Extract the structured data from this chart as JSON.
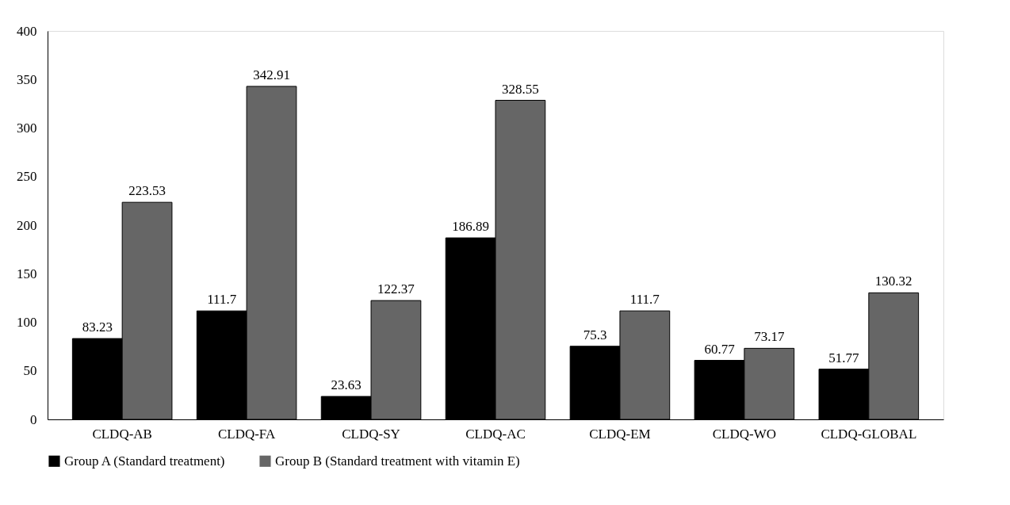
{
  "chart_data": {
    "type": "bar",
    "categories": [
      "CLDQ-AB",
      "CLDQ-FA",
      "CLDQ-SY",
      "CLDQ-AC",
      "CLDQ-EM",
      "CLDQ-WO",
      "CLDQ-GLOBAL"
    ],
    "series": [
      {
        "name": "Group A (Standard treatment)",
        "color": "#000000",
        "values": [
          83.23,
          111.7,
          23.63,
          186.89,
          75.3,
          60.77,
          51.77
        ]
      },
      {
        "name": "Group B (Standard treatment with vitamin E)",
        "color": "#666666",
        "values": [
          223.53,
          342.91,
          122.37,
          328.55,
          111.7,
          73.17,
          130.32
        ]
      }
    ],
    "ylim": [
      0,
      400
    ],
    "yticks": [
      0,
      50,
      100,
      150,
      200,
      250,
      300,
      350,
      400
    ],
    "grid": false,
    "legend": "bottom",
    "data_labels": true
  }
}
